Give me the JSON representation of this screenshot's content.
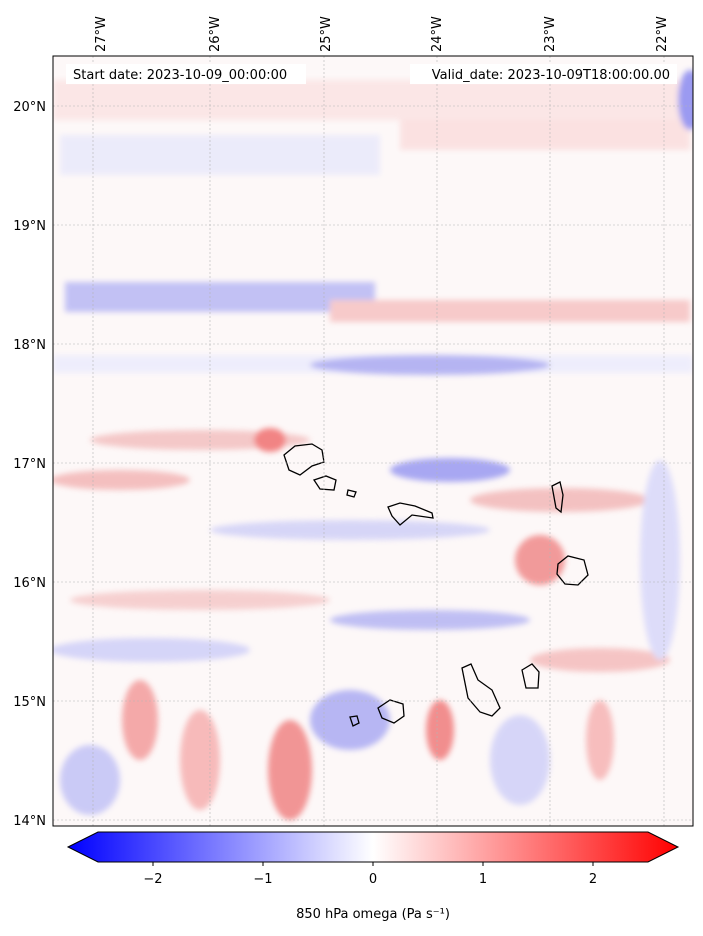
{
  "map": {
    "start_label": "Start date: 2023-10-09_00:00:00",
    "valid_label": "Valid_date: 2023-10-09T18:00:00.00",
    "lon_ticks": [
      "27°W",
      "26°W",
      "25°W",
      "24°W",
      "23°W",
      "22°W"
    ],
    "lat_ticks": [
      "20°N",
      "19°N",
      "18°N",
      "17°N",
      "16°N",
      "15°N",
      "14°N"
    ],
    "gridlines": true,
    "field": "850 hPa omega",
    "colormap": "bwr"
  },
  "colorbar": {
    "label": "850 hPa omega (Pa s⁻¹)",
    "tick_labels": [
      "−2",
      "−1",
      "0",
      "1",
      "2"
    ],
    "tick_values": [
      -2,
      -1,
      0,
      1,
      2
    ],
    "range": [
      -2.6,
      2.6
    ],
    "extend": "both",
    "colors": {
      "min": "#0000ff",
      "mid": "#ffffff",
      "max": "#ff0000"
    }
  }
}
